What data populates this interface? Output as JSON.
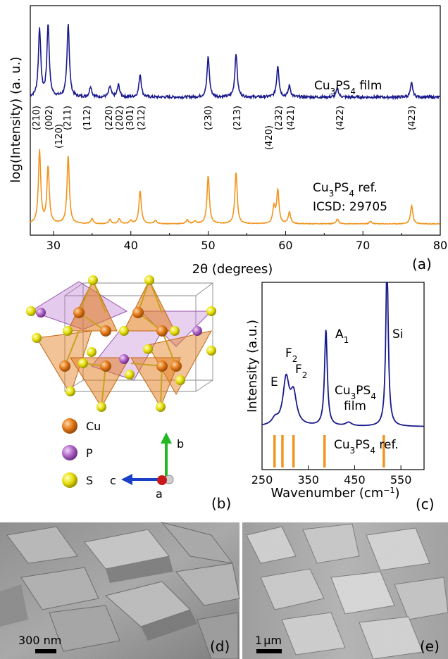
{
  "chart_data": [
    {
      "panel": "(a)",
      "type": "line",
      "xlabel": "2θ (degrees)",
      "ylabel": "log(Intensity) (a. u.)",
      "xlim": [
        27,
        80
      ],
      "x_ticks": [
        30,
        40,
        50,
        60,
        70,
        80
      ],
      "series": [
        {
          "name": "Cu3PS4 film",
          "label_base": "Cu",
          "label_sub1": "3",
          "label_mid": "PS",
          "label_sub2": "4",
          "label_tail": " film",
          "color": "#1a1a8c",
          "peaks": [
            [
              28.2,
              0.78
            ],
            [
              29.3,
              0.82
            ],
            [
              31.9,
              0.84
            ],
            [
              34.8,
              0.12
            ],
            [
              37.3,
              0.12
            ],
            [
              38.4,
              0.14
            ],
            [
              41.2,
              0.26
            ],
            [
              50.0,
              0.46
            ],
            [
              53.6,
              0.5
            ],
            [
              59.0,
              0.36
            ],
            [
              60.5,
              0.13
            ],
            [
              66.7,
              0.1
            ],
            [
              76.3,
              0.16
            ]
          ]
        },
        {
          "name": "Cu3PS4 ref. ICSD: 29705",
          "label_base": "Cu",
          "label_sub1": "3",
          "label_mid": "PS",
          "label_sub2": "4",
          "label_tail": " ref.",
          "label_line2": "ICSD: 29705",
          "color": "#f2941e",
          "peaks": [
            [
              28.2,
              0.88
            ],
            [
              29.3,
              0.68
            ],
            [
              31.9,
              0.82
            ],
            [
              35.0,
              0.06
            ],
            [
              37.3,
              0.05
            ],
            [
              38.5,
              0.06
            ],
            [
              40.0,
              0.04
            ],
            [
              41.2,
              0.4
            ],
            [
              43.2,
              0.04
            ],
            [
              47.3,
              0.05
            ],
            [
              48.3,
              0.03
            ],
            [
              50.0,
              0.58
            ],
            [
              53.6,
              0.62
            ],
            [
              58.5,
              0.2
            ],
            [
              59.0,
              0.4
            ],
            [
              60.5,
              0.14
            ],
            [
              66.7,
              0.06
            ],
            [
              71.0,
              0.03
            ],
            [
              76.3,
              0.22
            ]
          ]
        }
      ],
      "annotations": [
        "(210)",
        "(002)",
        "(120)",
        "(211)",
        "(112)",
        "(220)",
        "(202)",
        "(301)",
        "(212)",
        "(230)",
        "(213)",
        "(420)",
        "(232)",
        "(421)",
        "(422)",
        "(423)"
      ]
    },
    {
      "panel": "(c)",
      "type": "line",
      "xlabel_main": "Wavenumber (cm",
      "xlabel_sup": "−1",
      "xlabel_end": ")",
      "ylabel": "Intensity (a.u.)",
      "xlim": [
        250,
        600
      ],
      "x_ticks": [
        250,
        350,
        450,
        550
      ],
      "series": [
        {
          "name": "Cu3PS4 film",
          "color": "#1a1a8c",
          "peaks": [
            [
              278,
              0.05
            ],
            [
              302,
              0.38
            ],
            [
              318,
              0.25
            ],
            [
              388,
              0.8
            ],
            [
              437,
              0.03
            ],
            [
              520,
              1.4
            ]
          ]
        }
      ],
      "reference_lines": {
        "name": "Cu3PS4 ref.",
        "color": "#f2941e",
        "x": [
          277,
          294,
          318,
          385,
          513
        ]
      },
      "peak_labels": [
        {
          "text": "E"
        },
        {
          "text": "F",
          "sub": "2"
        },
        {
          "text": "F",
          "sub": "2"
        },
        {
          "text": "A",
          "sub": "1"
        },
        {
          "text": "Si"
        }
      ],
      "film_label": {
        "base": "Cu",
        "sub1": "3",
        "mid": "PS",
        "sub2": "4",
        "line2": "film"
      },
      "ref_label": {
        "base": "Cu",
        "sub1": "3",
        "mid": "PS",
        "sub2": "4",
        "tail": " ref."
      }
    }
  ],
  "panel_labels": {
    "a": "(a)",
    "b": "(b)",
    "c": "(c)",
    "d": "(d)",
    "e": "(e)"
  },
  "crystal": {
    "legend": [
      {
        "label": "Cu",
        "color": "#e27a18"
      },
      {
        "label": "P",
        "color": "#b266c9"
      },
      {
        "label": "S",
        "color": "#e8e00c"
      }
    ],
    "axes": {
      "a": "a",
      "b": "b",
      "c": "c"
    }
  },
  "sem": {
    "d_scale": "300 nm",
    "e_scale_num": "1",
    "e_scale_unit": "μm"
  }
}
